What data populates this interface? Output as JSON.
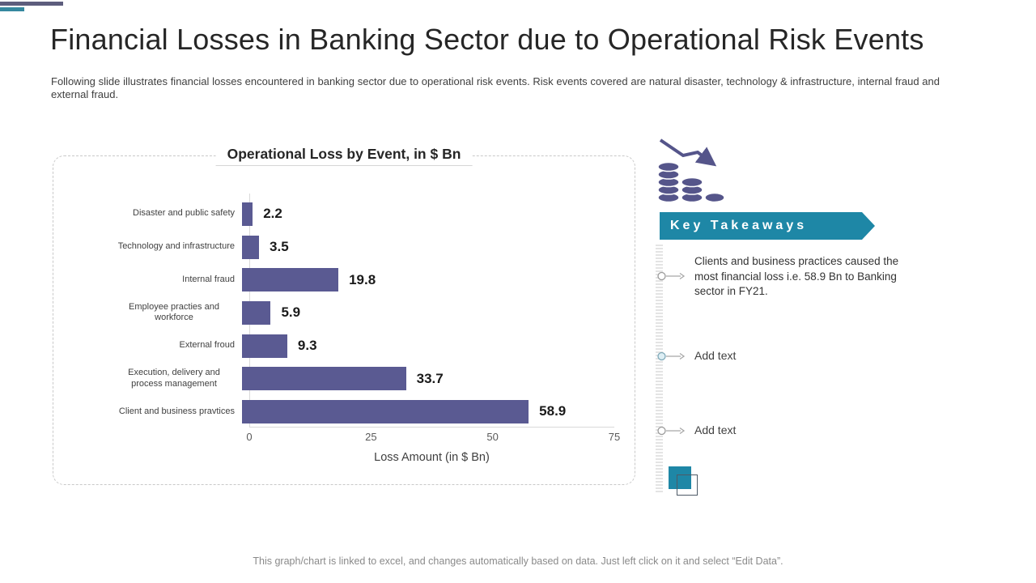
{
  "header": {
    "title": "Financial Losses in Banking Sector due to Operational Risk Events",
    "subtitle": "Following slide illustrates financial losses encountered in banking sector due to operational risk events.  Risk events covered  are natural disaster, technology & infrastructure,  internal fraud and external fraud."
  },
  "deco": {
    "dark_bar_color": "#5d5d7d",
    "teal_bar_color": "#35889f"
  },
  "chart_data": {
    "type": "bar",
    "orientation": "horizontal",
    "title": "Operational Loss by Event, in $ Bn",
    "categories": [
      "Disaster and public safety",
      "Technology and infrastructure",
      "Internal fraud",
      "Employee practies and workforce",
      "External froud",
      "Execution, delivery and process management",
      "Client and business pravtices"
    ],
    "values": [
      2.2,
      3.5,
      19.8,
      5.9,
      9.3,
      33.7,
      58.9
    ],
    "xlabel": "Loss Amount  (in $ Bn)",
    "xlim": [
      0,
      75
    ],
    "xticks": [
      0,
      25,
      50,
      75
    ],
    "bar_color": "#5a5a92",
    "grid": false,
    "legend": "none"
  },
  "takeaways": {
    "heading": "Key Takeaways",
    "banner_color": "#1e87a6",
    "items": [
      {
        "text": "Clients and business practices caused the most financial loss i.e. 58.9 Bn to Banking sector in FY21."
      },
      {
        "text": "Add text"
      },
      {
        "text": "Add text"
      }
    ]
  },
  "icons": {
    "coins": "declining-coins-icon",
    "marker": "circle-arrow-icon",
    "accent_color": "#55558a"
  },
  "footer": {
    "note": "This graph/chart is linked to excel, and changes automatically based on data. Just left click on it and select “Edit Data”."
  }
}
